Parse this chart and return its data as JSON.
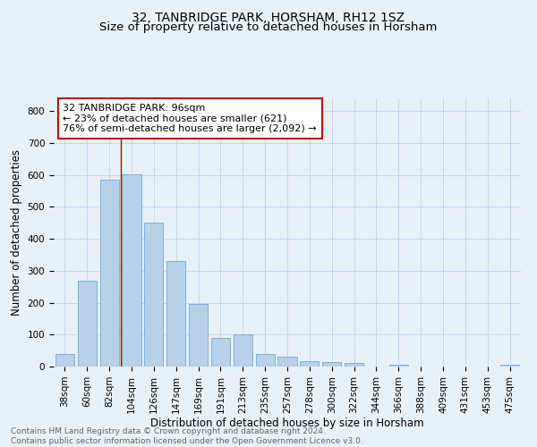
{
  "title": "32, TANBRIDGE PARK, HORSHAM, RH12 1SZ",
  "subtitle": "Size of property relative to detached houses in Horsham",
  "xlabel": "Distribution of detached houses by size in Horsham",
  "ylabel": "Number of detached properties",
  "categories": [
    "38sqm",
    "60sqm",
    "82sqm",
    "104sqm",
    "126sqm",
    "147sqm",
    "169sqm",
    "191sqm",
    "213sqm",
    "235sqm",
    "257sqm",
    "278sqm",
    "300sqm",
    "322sqm",
    "344sqm",
    "366sqm",
    "388sqm",
    "409sqm",
    "431sqm",
    "453sqm",
    "475sqm"
  ],
  "values": [
    38,
    268,
    585,
    603,
    452,
    330,
    197,
    90,
    100,
    38,
    30,
    17,
    15,
    10,
    0,
    7,
    0,
    0,
    0,
    0,
    7
  ],
  "bar_color": "#b8d0e8",
  "bar_edge_color": "#5a9fd4",
  "grid_color": "#c8d8ea",
  "background_color": "#e8f0f8",
  "vline_x_index": 2.5,
  "vline_color": "#cc0000",
  "annotation_text": "32 TANBRIDGE PARK: 96sqm\n← 23% of detached houses are smaller (621)\n76% of semi-detached houses are larger (2,092) →",
  "annotation_box_color": "#ffffff",
  "annotation_box_edge": "#cc0000",
  "ylim": [
    0,
    840
  ],
  "yticks": [
    0,
    100,
    200,
    300,
    400,
    500,
    600,
    700,
    800
  ],
  "footer_text": "Contains HM Land Registry data © Crown copyright and database right 2024.\nContains public sector information licensed under the Open Government Licence v3.0.",
  "title_fontsize": 10,
  "subtitle_fontsize": 9.5,
  "axis_label_fontsize": 8.5,
  "tick_fontsize": 7.5,
  "annotation_fontsize": 8,
  "footer_fontsize": 6.5
}
